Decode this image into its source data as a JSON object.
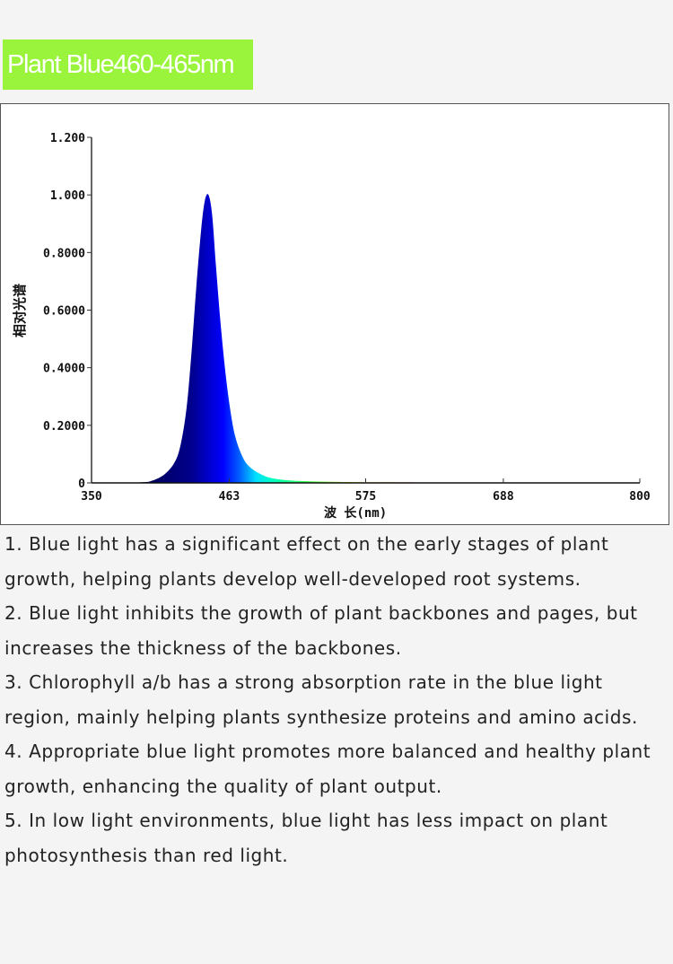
{
  "title": "Plant Blue460-465nm",
  "chart_data": {
    "type": "area",
    "title": "",
    "xlabel": "波 长(nm)",
    "ylabel": "相对光谱",
    "xlim": [
      350,
      800
    ],
    "ylim": [
      0,
      1.2
    ],
    "xticks": [
      "350",
      "463",
      "575",
      "688",
      "800"
    ],
    "xtick_values": [
      350,
      463,
      575,
      688,
      800
    ],
    "yticks": [
      "0",
      "0.2000",
      "0.4000",
      "0.6000",
      "0.8000",
      "1.000",
      "1.200"
    ],
    "ytick_values": [
      0,
      0.2,
      0.4,
      0.6,
      0.8,
      1.0,
      1.2
    ],
    "grid": false,
    "fill": "wavelength-colored spectrum",
    "x": [
      350,
      390,
      400,
      410,
      418,
      423,
      428,
      432,
      436,
      440,
      443,
      446,
      449,
      452,
      456,
      460,
      464,
      468,
      474,
      480,
      490,
      500,
      520,
      560,
      600,
      700,
      800
    ],
    "y": [
      0,
      0.002,
      0.008,
      0.03,
      0.07,
      0.13,
      0.26,
      0.45,
      0.68,
      0.88,
      0.98,
      1.0,
      0.93,
      0.76,
      0.55,
      0.38,
      0.25,
      0.16,
      0.09,
      0.055,
      0.028,
      0.015,
      0.007,
      0.003,
      0.002,
      0.001,
      0
    ]
  },
  "notes": [
    "1. Blue light has a significant effect on the early stages of plant growth, helping plants develop well-developed root systems.",
    "2. Blue light inhibits the growth of plant backbones and pages, but increases the thickness of the backbones.",
    "3. Chlorophyll a/b has a strong absorption rate in the blue light region, mainly helping plants synthesize proteins and amino acids.",
    "4. Appropriate blue light promotes more balanced and healthy plant growth, enhancing the quality of plant output.",
    "5. In low light environments, blue light has less impact on plant photosynthesis than red light."
  ],
  "colors": {
    "badge": "#9af43c",
    "page_bg": "#f4f4f4"
  }
}
